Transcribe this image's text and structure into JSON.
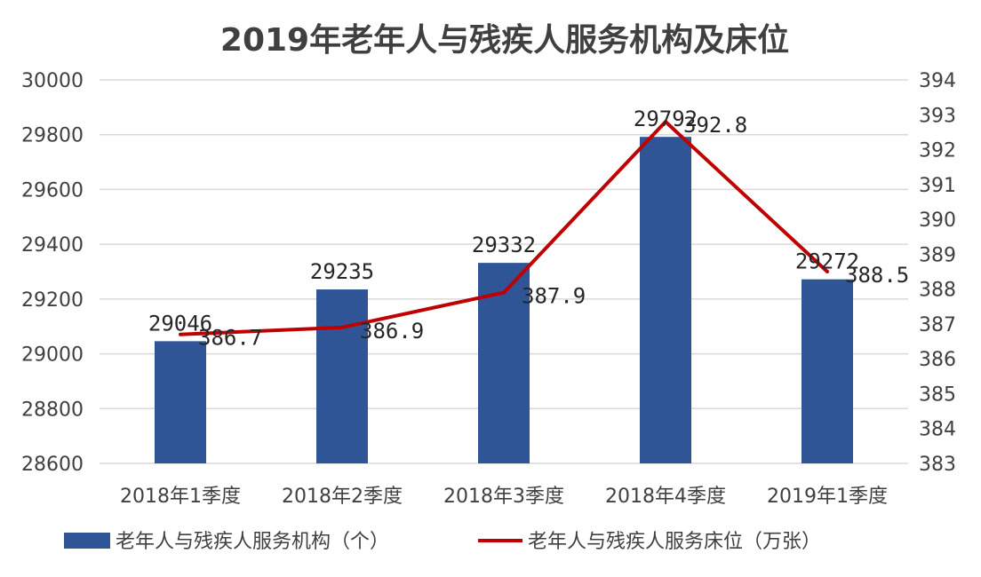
{
  "chart_data": {
    "type": "bar+line",
    "title": "2019年老年人与残疾人服务机构及床位",
    "categories": [
      "2018年1季度",
      "2018年2季度",
      "2018年3季度",
      "2018年4季度",
      "2019年1季度"
    ],
    "series": [
      {
        "name": "老年人与残疾人服务机构（个）",
        "type": "bar",
        "axis": "left",
        "color": "#2F5597",
        "values": [
          29046,
          29235,
          29332,
          29792,
          29272
        ],
        "labels": [
          "29046",
          "29235",
          "29332",
          "29792",
          "29272"
        ]
      },
      {
        "name": "老年人与残疾人服务床位（万张）",
        "type": "line",
        "axis": "right",
        "color": "#C00000",
        "values": [
          386.7,
          386.9,
          387.9,
          392.8,
          388.5
        ],
        "labels": [
          "386.7",
          "386.9",
          "387.9",
          "392.8",
          "388.5"
        ]
      }
    ],
    "y_left": {
      "min": 28600,
      "max": 30000,
      "ticks": [
        "28600",
        "28800",
        "29000",
        "29200",
        "29400",
        "29600",
        "29800",
        "30000"
      ]
    },
    "y_right": {
      "min": 383,
      "max": 394,
      "ticks": [
        "383",
        "384",
        "385",
        "386",
        "387",
        "388",
        "389",
        "390",
        "391",
        "392",
        "393",
        "394"
      ]
    },
    "grid": true,
    "legend": "bottom"
  }
}
